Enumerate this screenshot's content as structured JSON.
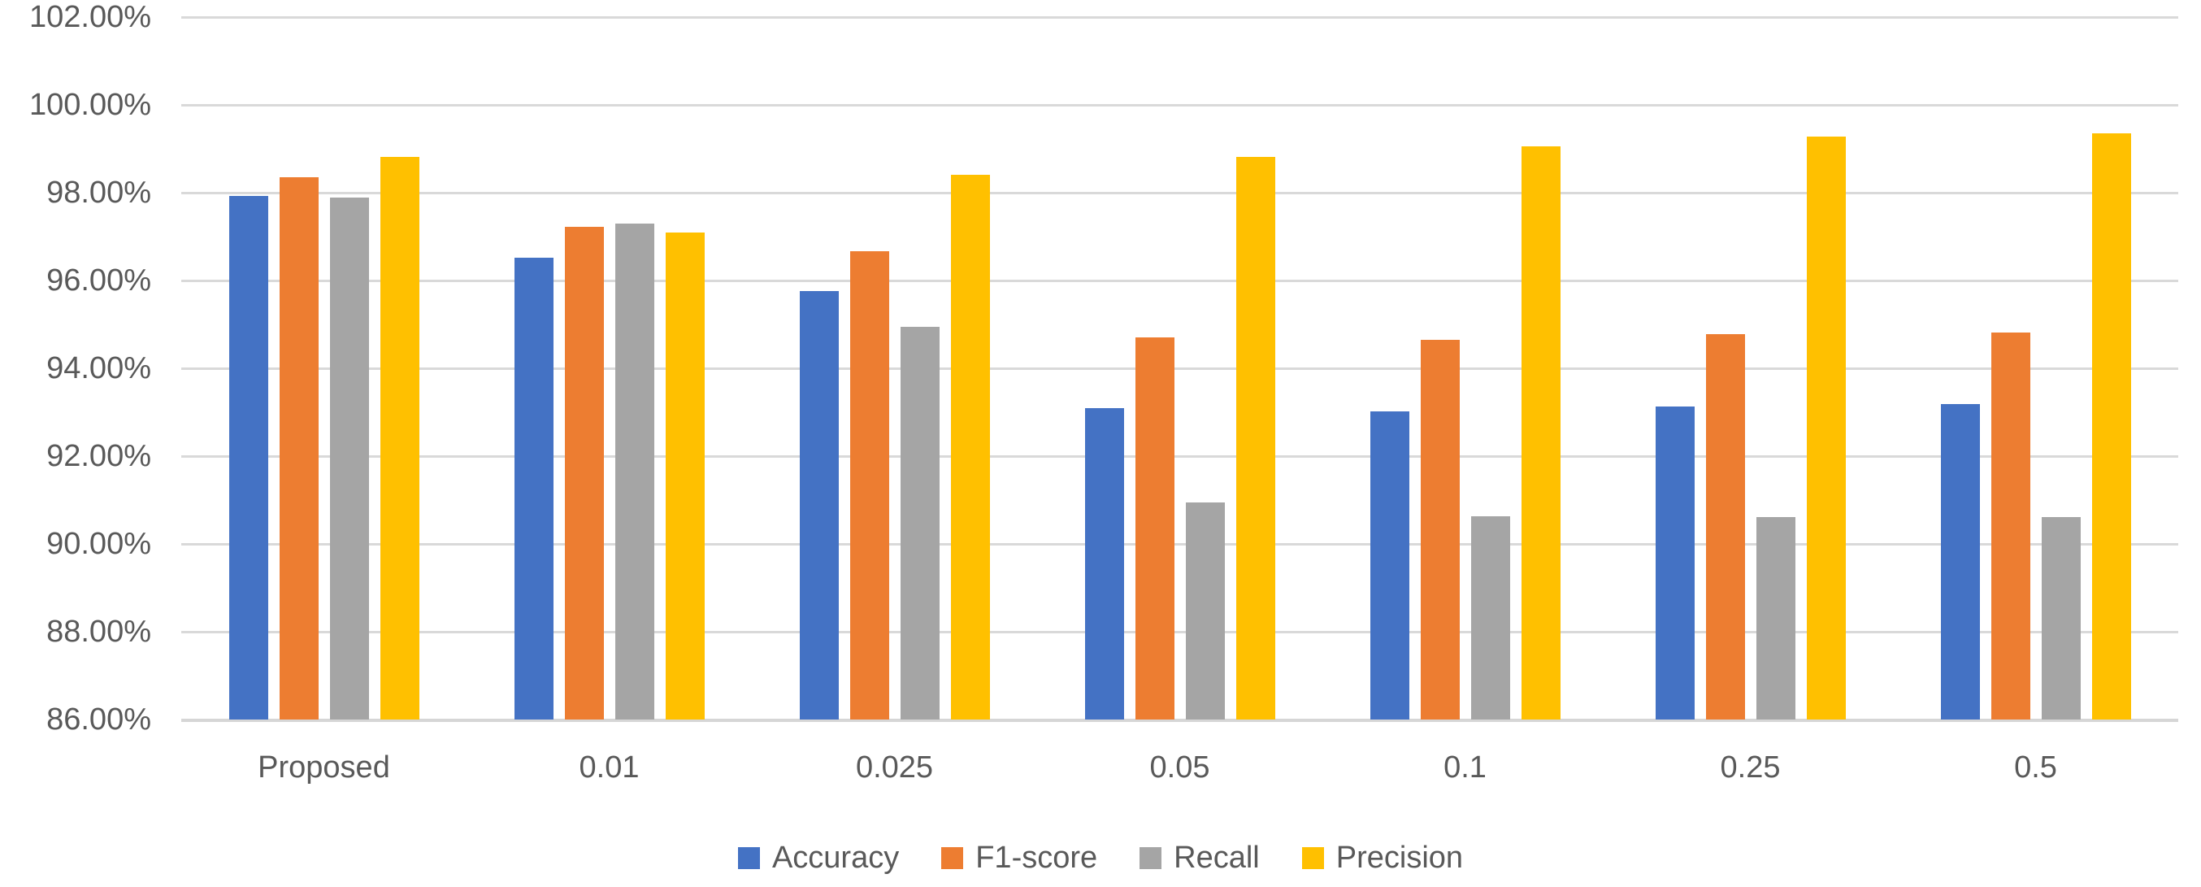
{
  "chart_data": {
    "type": "bar",
    "title": "",
    "xlabel": "",
    "ylabel": "",
    "categories": [
      "Proposed",
      "0.01",
      "0.025",
      "0.05",
      "0.1",
      "0.25",
      "0.5"
    ],
    "series": [
      {
        "name": "Accuracy",
        "color": "#4472c4",
        "values": [
          97.92,
          96.51,
          95.76,
          93.09,
          93.02,
          93.13,
          93.18
        ]
      },
      {
        "name": "F1-score",
        "color": "#ed7d31",
        "values": [
          98.35,
          97.22,
          96.66,
          94.7,
          94.65,
          94.77,
          94.81
        ]
      },
      {
        "name": "Recall",
        "color": "#a5a5a5",
        "values": [
          97.89,
          97.3,
          94.95,
          90.95,
          90.63,
          90.62,
          90.61
        ]
      },
      {
        "name": "Precision",
        "color": "#ffc000",
        "values": [
          98.82,
          97.1,
          98.41,
          98.82,
          99.05,
          99.28,
          99.36
        ]
      }
    ],
    "ylim": [
      86,
      102
    ],
    "y_tick_step": 2,
    "y_tick_labels": [
      "86.00%",
      "88.00%",
      "90.00%",
      "92.00%",
      "94.00%",
      "96.00%",
      "98.00%",
      "100.00%",
      "102.00%"
    ],
    "grid": "horizontal",
    "gridline_color": "#d9d9d9",
    "axis_text_color": "#595959",
    "legend_position": "bottom",
    "legend_entries": [
      "Accuracy",
      "F1-score",
      "Recall",
      "Precision"
    ]
  }
}
